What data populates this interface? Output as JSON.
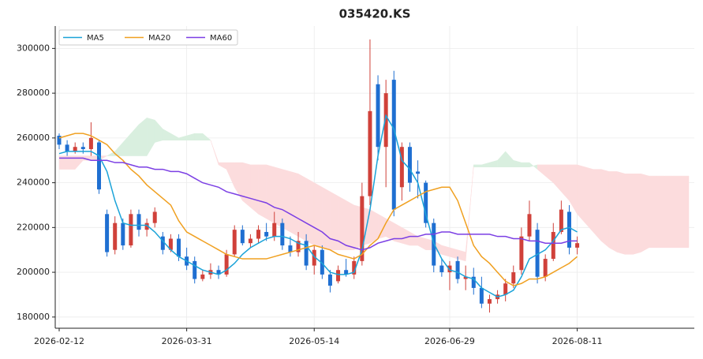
{
  "chart_data": {
    "type": "candlestick",
    "title": "035420.KS",
    "categories": [
      "2026-02-12",
      null,
      null,
      null,
      null,
      null,
      null,
      null,
      null,
      null,
      null,
      null,
      null,
      null,
      null,
      null,
      "2026-03-31",
      null,
      null,
      null,
      null,
      null,
      null,
      null,
      null,
      null,
      null,
      null,
      null,
      null,
      null,
      null,
      "2026-05-14",
      null,
      null,
      null,
      null,
      null,
      null,
      null,
      null,
      null,
      null,
      null,
      null,
      null,
      null,
      null,
      null,
      "2026-06-29",
      null,
      null,
      null,
      null,
      null,
      null,
      null,
      null,
      null,
      null,
      null,
      null,
      null,
      null,
      null,
      "2026-08-11",
      null,
      null,
      null,
      null,
      null,
      null,
      null,
      null,
      null,
      null,
      null,
      null,
      null,
      null
    ],
    "open": [
      261000,
      257000,
      254000,
      256000,
      255000,
      258000,
      226000,
      210000,
      222000,
      212000,
      226000,
      219000,
      222000,
      216000,
      210000,
      215000,
      207000,
      205000,
      197000,
      199000,
      201000,
      199000,
      208000,
      219000,
      213000,
      215000,
      218000,
      216000,
      222000,
      212000,
      209000,
      214000,
      203000,
      210000,
      199000,
      196000,
      201000,
      199000,
      205000,
      234000,
      284000,
      256000,
      286000,
      238000,
      256000,
      245000,
      240000,
      222000,
      203000,
      200000,
      205000,
      197000,
      198000,
      193000,
      186000,
      188000,
      190000,
      195000,
      201000,
      216000,
      219000,
      198000,
      206000,
      218000,
      227000,
      211000,
      null,
      null,
      null,
      null,
      null,
      null,
      null,
      null,
      null,
      null,
      null,
      null,
      null,
      null
    ],
    "high": [
      262000,
      259000,
      258000,
      258000,
      267000,
      259000,
      228000,
      225000,
      224000,
      228000,
      228000,
      224000,
      229000,
      218000,
      217000,
      217000,
      211000,
      207000,
      201000,
      204000,
      203000,
      210000,
      221000,
      221000,
      217000,
      221000,
      222000,
      227000,
      224000,
      216000,
      218000,
      217000,
      212000,
      212000,
      201000,
      203000,
      206000,
      207000,
      240000,
      304000,
      288000,
      286000,
      290000,
      258000,
      258000,
      250000,
      241000,
      224000,
      206000,
      205000,
      207000,
      203000,
      202000,
      198000,
      190000,
      192000,
      197000,
      203000,
      220000,
      232000,
      222000,
      208000,
      222000,
      232000,
      230000,
      216000,
      null,
      null,
      null,
      null,
      null,
      null,
      null,
      null,
      null,
      null,
      null,
      null,
      null,
      null
    ],
    "low": [
      255000,
      252000,
      253000,
      253000,
      252000,
      235000,
      207000,
      208000,
      210000,
      211000,
      216000,
      216000,
      220000,
      208000,
      209000,
      205000,
      201000,
      195000,
      196000,
      197000,
      197000,
      198000,
      207000,
      212000,
      211000,
      213000,
      214000,
      214000,
      210000,
      207000,
      207000,
      201000,
      199000,
      197000,
      191000,
      195000,
      198000,
      197000,
      203000,
      230000,
      250000,
      238000,
      225000,
      232000,
      236000,
      233000,
      220000,
      200000,
      198000,
      192000,
      195000,
      192000,
      190000,
      184000,
      182000,
      186000,
      187000,
      193000,
      199000,
      214000,
      195000,
      196000,
      205000,
      217000,
      208000,
      208000,
      null,
      null,
      null,
      null,
      null,
      null,
      null,
      null,
      null,
      null,
      null,
      null,
      null,
      null
    ],
    "close": [
      257000,
      254000,
      256000,
      255000,
      260000,
      237000,
      209000,
      222000,
      212000,
      226000,
      219000,
      222000,
      227000,
      210000,
      215000,
      207000,
      203000,
      197000,
      199000,
      201000,
      199000,
      208000,
      219000,
      213000,
      215000,
      219000,
      216000,
      222000,
      212000,
      209000,
      214000,
      203000,
      210000,
      199000,
      194000,
      201000,
      199000,
      205000,
      234000,
      272000,
      256000,
      280000,
      228000,
      256000,
      240000,
      244000,
      222000,
      203000,
      200000,
      203000,
      197000,
      198000,
      193000,
      186000,
      188000,
      190000,
      195000,
      200000,
      216000,
      226000,
      198000,
      206000,
      218000,
      228000,
      211000,
      213000,
      null,
      null,
      null,
      null,
      null,
      null,
      null,
      null,
      null,
      null,
      null,
      null,
      null,
      null
    ],
    "up_color": "#d0413a",
    "down_color": "#1f6fd1",
    "series": [
      {
        "name": "MA5",
        "color": "#1ba3d8",
        "values": [
          253000,
          254000,
          254000,
          254000,
          254000,
          252000,
          245000,
          232000,
          222000,
          221000,
          221000,
          221000,
          218000,
          214000,
          210000,
          207000,
          205000,
          203000,
          201000,
          200000,
          199000,
          201000,
          204000,
          208000,
          211000,
          213000,
          215000,
          216000,
          216000,
          215000,
          213000,
          212000,
          207000,
          204000,
          200000,
          199000,
          199000,
          200000,
          210000,
          228000,
          252000,
          270000,
          264000,
          250000,
          246000,
          240000,
          226000,
          213000,
          206000,
          201000,
          200000,
          198000,
          197000,
          193000,
          191000,
          189000,
          190000,
          192000,
          198000,
          206000,
          208000,
          210000,
          214000,
          219000,
          220000,
          218000,
          null,
          null,
          null,
          null,
          null,
          null,
          null,
          null,
          null,
          null,
          null,
          null,
          null,
          null
        ]
      },
      {
        "name": "MA20",
        "color": "#f0a020",
        "values": [
          260000,
          261000,
          262000,
          262000,
          261000,
          259000,
          257000,
          253000,
          250000,
          246000,
          243000,
          239000,
          236000,
          233000,
          230000,
          223000,
          218000,
          216000,
          214000,
          212000,
          210000,
          208000,
          207000,
          206000,
          206000,
          206000,
          206000,
          207000,
          208000,
          209000,
          210000,
          211000,
          212000,
          211000,
          210000,
          208000,
          207000,
          206000,
          208000,
          212000,
          215000,
          222000,
          228000,
          230000,
          232000,
          234000,
          236000,
          237000,
          238000,
          238000,
          232000,
          222000,
          212000,
          207000,
          204000,
          200000,
          196000,
          194000,
          195000,
          197000,
          197000,
          198000,
          200000,
          202000,
          204000,
          207000,
          null,
          null,
          null,
          null,
          null,
          null,
          null,
          null,
          null,
          null,
          null,
          null,
          null,
          null
        ]
      },
      {
        "name": "MA60",
        "color": "#7b3fe4",
        "values": [
          251000,
          251000,
          251000,
          251000,
          250000,
          250000,
          250000,
          249000,
          249000,
          248000,
          247000,
          247000,
          246000,
          246000,
          245000,
          245000,
          244000,
          242000,
          240000,
          239000,
          238000,
          236000,
          235000,
          234000,
          233000,
          232000,
          231000,
          229000,
          228000,
          226000,
          224000,
          222000,
          220000,
          218000,
          215000,
          214000,
          212000,
          211000,
          210000,
          211000,
          213000,
          214000,
          215000,
          215000,
          216000,
          216000,
          217000,
          217000,
          218000,
          218000,
          217000,
          217000,
          217000,
          217000,
          217000,
          216000,
          216000,
          215000,
          215000,
          214000,
          214000,
          213000,
          213000,
          213000,
          214000,
          214000,
          null,
          null,
          null,
          null,
          null,
          null,
          null,
          null,
          null,
          null,
          null,
          null,
          null,
          null
        ]
      }
    ],
    "cloud_a": [
      246000,
      246000,
      246000,
      250000,
      250000,
      250000,
      252000,
      254000,
      258000,
      262000,
      266000,
      269000,
      268000,
      264000,
      262000,
      260000,
      261000,
      262000,
      262000,
      259000,
      248000,
      246000,
      238000,
      232000,
      229000,
      226000,
      224000,
      222000,
      220000,
      218000,
      216000,
      214000,
      212000,
      211000,
      210000,
      210000,
      210000,
      210000,
      212000,
      213000,
      215000,
      216000,
      214000,
      213000,
      212000,
      212000,
      210000,
      210000,
      208000,
      207000,
      206000,
      205000,
      248000,
      248000,
      249000,
      250000,
      254000,
      250000,
      249000,
      249000,
      246000,
      243000,
      240000,
      236000,
      232000,
      226000,
      222000,
      218000,
      214000,
      211000,
      209000,
      208000,
      208000,
      209000,
      211000,
      211000,
      211000,
      211000,
      211000,
      211000
    ],
    "cloud_b": [
      252000,
      252000,
      252000,
      252000,
      252000,
      252000,
      252000,
      252000,
      252000,
      252000,
      252000,
      252000,
      258000,
      259000,
      259000,
      259000,
      259000,
      259000,
      259000,
      259000,
      249000,
      249000,
      249000,
      249000,
      248000,
      248000,
      248000,
      247000,
      246000,
      245000,
      244000,
      242000,
      240000,
      238000,
      236000,
      234000,
      232000,
      230000,
      229000,
      228000,
      226000,
      224000,
      222000,
      220000,
      218000,
      216000,
      215000,
      214000,
      212000,
      211000,
      210000,
      209000,
      247000,
      247000,
      247000,
      247000,
      247000,
      247000,
      247000,
      247000,
      248000,
      248000,
      248000,
      248000,
      248000,
      248000,
      247000,
      246000,
      246000,
      245000,
      245000,
      244000,
      244000,
      244000,
      243000,
      243000,
      243000,
      243000,
      243000,
      243000
    ],
    "cloud_up_color": "#d9efdf",
    "cloud_down_color": "#fcdcdd",
    "ylim": [
      175000,
      310000
    ],
    "yticks": [
      180000,
      200000,
      220000,
      240000,
      260000,
      280000,
      300000
    ],
    "grid": true,
    "legend": "upper left"
  }
}
